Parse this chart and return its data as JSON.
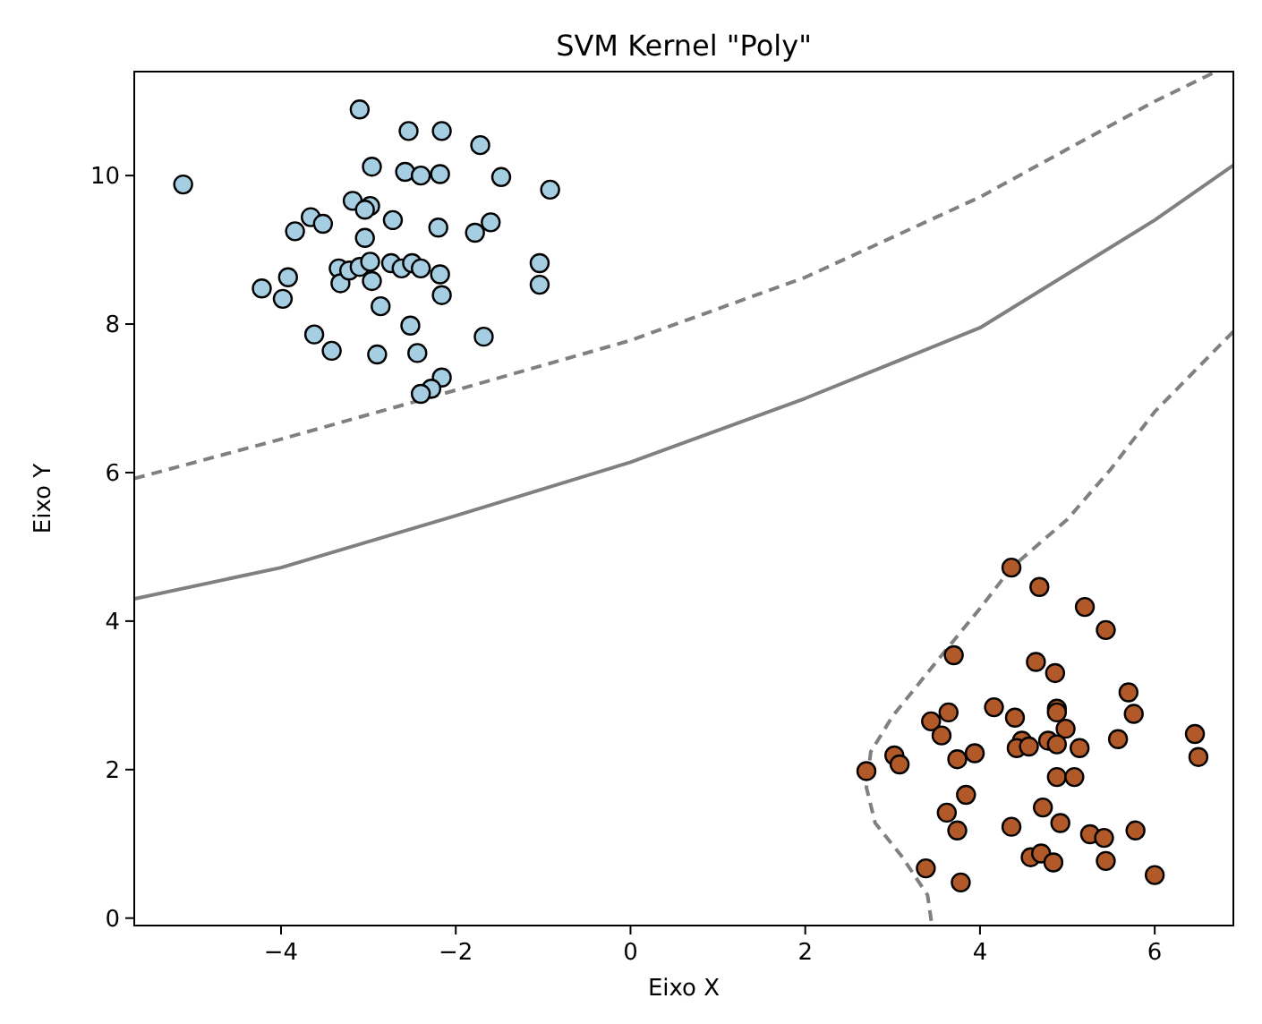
{
  "chart_data": {
    "type": "scatter",
    "title": "SVM Kernel \"Poly\"",
    "xlabel": "Eixo X",
    "ylabel": "Eixo Y",
    "xlim": [
      -5.68,
      6.9
    ],
    "ylim": [
      -0.1,
      11.4
    ],
    "xticks": [
      -4,
      -2,
      0,
      2,
      4,
      6
    ],
    "yticks": [
      0,
      2,
      4,
      6,
      8,
      10
    ],
    "grid": false,
    "marker": "circle",
    "series": [
      {
        "color": "#a6cee3",
        "x": [
          -5.12,
          -3.1,
          -2.54,
          -2.16,
          -1.72,
          -2.96,
          -2.58,
          -2.4,
          -2.18,
          -1.48,
          -0.92,
          -3.18,
          -2.98,
          -3.04,
          -3.66,
          -3.52,
          -3.84,
          -2.72,
          -2.2,
          -1.78,
          -1.6,
          -3.04,
          -1.04,
          -1.04,
          -3.34,
          -3.32,
          -3.22,
          -3.1,
          -2.98,
          -2.96,
          -2.74,
          -2.62,
          -2.5,
          -2.4,
          -2.18,
          -2.16,
          -3.92,
          -4.22,
          -3.98,
          -2.86,
          -2.52,
          -3.62,
          -3.42,
          -2.9,
          -2.44,
          -1.68,
          -2.16,
          -2.28,
          -2.4
        ],
        "values": [
          9.88,
          10.89,
          10.6,
          10.6,
          10.41,
          10.12,
          10.05,
          10,
          10.02,
          9.98,
          9.81,
          9.66,
          9.59,
          9.54,
          9.44,
          9.35,
          9.25,
          9.4,
          9.3,
          9.23,
          9.37,
          9.16,
          8.82,
          8.53,
          8.75,
          8.55,
          8.72,
          8.77,
          8.84,
          8.58,
          8.82,
          8.75,
          8.82,
          8.75,
          8.67,
          8.39,
          8.63,
          8.48,
          8.34,
          8.24,
          7.98,
          7.86,
          7.64,
          7.59,
          7.61,
          7.83,
          7.28,
          7.13,
          7.06
        ]
      },
      {
        "color": "#b15928",
        "x": [
          4.36,
          4.68,
          5.2,
          5.44,
          3.7,
          4.64,
          4.86,
          5.7,
          5.76,
          4.16,
          4.4,
          4.88,
          4.88,
          4.98,
          3.64,
          3.44,
          3.56,
          4.48,
          4.42,
          4.56,
          4.78,
          4.88,
          5.14,
          5.58,
          6.46,
          6.5,
          3.02,
          3.08,
          3.74,
          3.94,
          2.7,
          4.88,
          5.08,
          3.84,
          3.62,
          3.74,
          4.72,
          4.92,
          4.36,
          5.26,
          5.42,
          5.78,
          4.58,
          4.7,
          4.84,
          5.44,
          6.0,
          3.38,
          3.78
        ],
        "values": [
          4.72,
          4.46,
          4.19,
          3.88,
          3.54,
          3.45,
          3.3,
          3.04,
          2.75,
          2.84,
          2.7,
          2.82,
          2.77,
          2.55,
          2.77,
          2.65,
          2.46,
          2.39,
          2.29,
          2.31,
          2.39,
          2.34,
          2.29,
          2.41,
          2.48,
          2.17,
          2.19,
          2.07,
          2.14,
          2.22,
          1.98,
          1.9,
          1.9,
          1.66,
          1.42,
          1.18,
          1.49,
          1.28,
          1.23,
          1.13,
          1.08,
          1.18,
          0.82,
          0.87,
          0.75,
          0.77,
          0.58,
          0.67,
          0.48
        ]
      },
      {
        "type": "line",
        "color": "#808080",
        "line_style": "solid",
        "marker": "none",
        "x": [
          -5.68,
          -4,
          -2,
          0,
          2,
          4,
          6,
          6.9
        ],
        "values": [
          4.3,
          4.72,
          5.42,
          6.14,
          7.0,
          7.95,
          9.4,
          10.14
        ]
      },
      {
        "type": "line",
        "color": "#808080",
        "line_style": "dashed",
        "marker": "none",
        "x": [
          -5.68,
          -4,
          -2,
          0,
          2,
          4,
          6,
          6.7
        ],
        "values": [
          5.92,
          6.45,
          7.11,
          7.78,
          8.63,
          9.71,
          11.0,
          11.4
        ]
      },
      {
        "type": "line",
        "color": "#808080",
        "line_style": "dashed",
        "marker": "none",
        "x": [
          6.9,
          6,
          5.5,
          5,
          4.36,
          4,
          3.5,
          3,
          2.75,
          2.7,
          2.8,
          3.1,
          3.4,
          3.45
        ],
        "values": [
          7.9,
          6.82,
          6.05,
          5.37,
          4.72,
          4.17,
          3.45,
          2.72,
          2.24,
          1.76,
          1.28,
          0.84,
          0.31,
          -0.1
        ]
      }
    ]
  }
}
